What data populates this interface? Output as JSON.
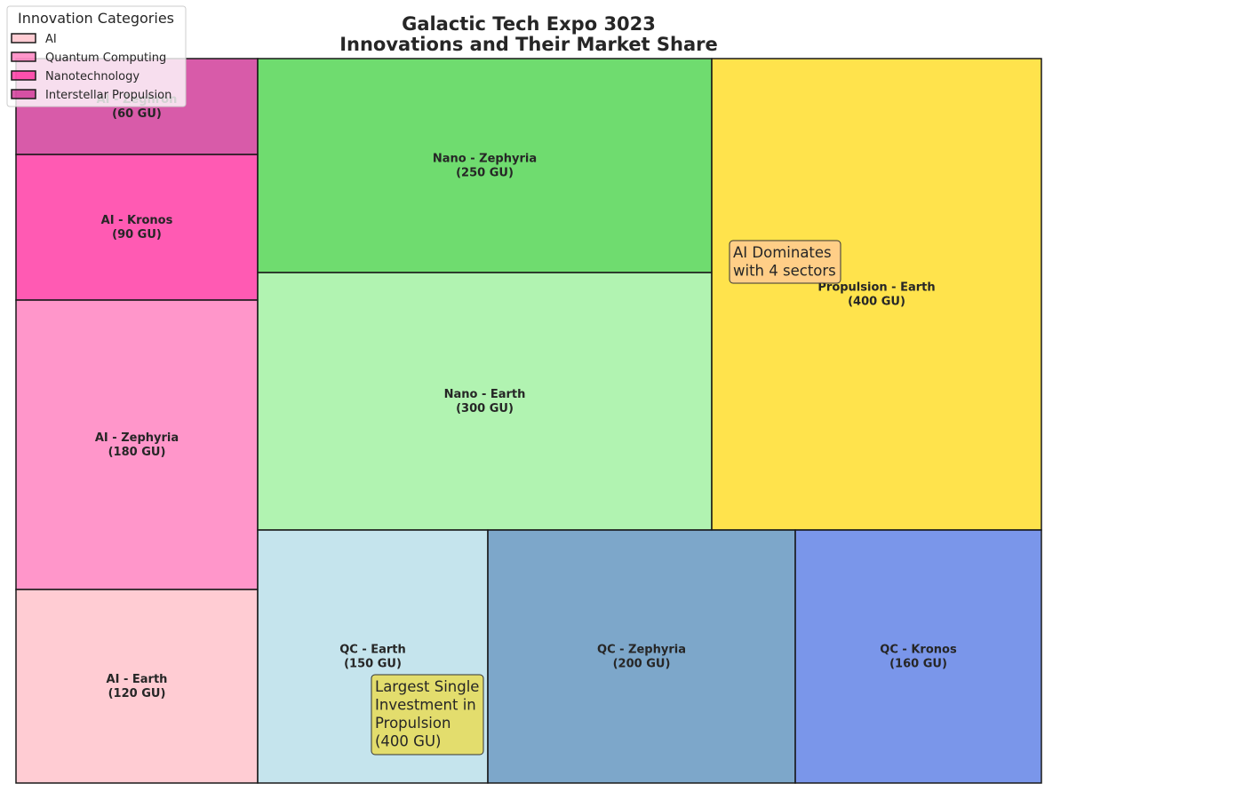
{
  "chart_data": {
    "type": "treemap",
    "title_lines": [
      "Galactic Tech Expo 3023",
      "Innovations and Their Market Share"
    ],
    "unit": "GU",
    "cells": [
      {
        "label": "AI - Zeghron",
        "value": 60,
        "color": "#c71585"
      },
      {
        "label": "AI - Kronos",
        "value": 90,
        "color": "#ff1493"
      },
      {
        "label": "AI - Zephyria",
        "value": 180,
        "color": "#ff69b4"
      },
      {
        "label": "AI - Earth",
        "value": 120,
        "color": "#ffb6c1"
      },
      {
        "label": "Nano - Zephyria",
        "value": 250,
        "color": "#32cd32"
      },
      {
        "label": "Nano - Earth",
        "value": 300,
        "color": "#90ee90"
      },
      {
        "label": "Propulsion - Earth",
        "value": 400,
        "color": "#ffd700"
      },
      {
        "label": "QC - Earth",
        "value": 150,
        "color": "#add8e6"
      },
      {
        "label": "QC - Zephyria",
        "value": 200,
        "color": "#4682b4"
      },
      {
        "label": "QC - Kronos",
        "value": 160,
        "color": "#4169e1"
      }
    ],
    "annotations": [
      {
        "lines": [
          "AI Dominates",
          "with 4 sectors"
        ],
        "background": "#ffcb8e"
      },
      {
        "lines": [
          "Largest Single",
          "Investment in",
          "Propulsion",
          "(400 GU)"
        ],
        "background": "#e6dc5e"
      }
    ],
    "legend": {
      "title": "Innovation Categories",
      "placement": "top-left",
      "entries": [
        {
          "name": "AI",
          "color": "#ffb6c1"
        },
        {
          "name": "Quantum Computing",
          "color": "#ff69b4"
        },
        {
          "name": "Nanotechnology",
          "color": "#ff1493"
        },
        {
          "name": "Interstellar Propulsion",
          "color": "#c71585"
        }
      ]
    }
  }
}
